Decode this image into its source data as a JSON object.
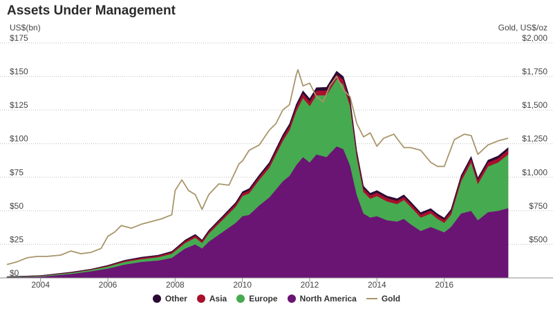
{
  "chart_data": {
    "type": "area",
    "title": "Assets Under Management",
    "ylabel_left": "US$(bn)",
    "ylabel_right": "Gold, US$/oz",
    "left_ticks": [
      "$0",
      "$25",
      "$50",
      "$75",
      "$100",
      "$125",
      "$150",
      "$175"
    ],
    "right_ticks": [
      "$500",
      "$750",
      "$1,000",
      "$1,250",
      "$1,500",
      "$1,750",
      "$2,000"
    ],
    "x_ticks": [
      "2004",
      "2006",
      "2008",
      "2010",
      "2012",
      "2014",
      "2016"
    ],
    "ylim_left": [
      0,
      175
    ],
    "ylim_right": [
      250,
      2000
    ],
    "xlim": [
      2003.0,
      2018.0
    ],
    "grid": true,
    "legend_position": "bottom",
    "x": [
      2003.0,
      2004.0,
      2004.9,
      2005.5,
      2006.0,
      2006.5,
      2007.0,
      2007.5,
      2007.9,
      2008.3,
      2008.6,
      2008.8,
      2009.0,
      2009.4,
      2009.8,
      2010.0,
      2010.2,
      2010.5,
      2010.8,
      2011.0,
      2011.2,
      2011.4,
      2011.6,
      2011.8,
      2012.0,
      2012.2,
      2012.5,
      2012.8,
      2013.0,
      2013.2,
      2013.4,
      2013.6,
      2013.8,
      2014.0,
      2014.3,
      2014.6,
      2014.8,
      2015.0,
      2015.3,
      2015.6,
      2015.8,
      2016.0,
      2016.2,
      2016.5,
      2016.8,
      2017.0,
      2017.3,
      2017.6,
      2017.9
    ],
    "series": [
      {
        "name": "North America",
        "color": "#6a1474",
        "values": [
          0.5,
          1,
          3,
          5,
          7,
          10,
          12,
          13,
          15,
          22,
          25,
          22,
          27,
          34,
          41,
          46,
          47,
          54,
          60,
          66,
          72,
          76,
          84,
          90,
          86,
          92,
          90,
          98,
          96,
          84,
          62,
          48,
          45,
          46,
          43,
          42,
          44,
          40,
          35,
          38,
          36,
          34,
          38,
          48,
          50,
          43,
          49,
          50,
          52
        ]
      },
      {
        "name": "Europe",
        "color": "#46aa50",
        "values": [
          0.3,
          0.5,
          0.8,
          1,
          1.5,
          2,
          2,
          2.5,
          3,
          4,
          5,
          4,
          6,
          9,
          12,
          15,
          16,
          19,
          22,
          26,
          30,
          34,
          40,
          44,
          42,
          44,
          46,
          50,
          48,
          44,
          28,
          16,
          14,
          15,
          14,
          13,
          14,
          13,
          10,
          10,
          8,
          7,
          9,
          24,
          36,
          27,
          34,
          36,
          40
        ]
      },
      {
        "name": "Asia",
        "color": "#a8102b",
        "values": [
          0.1,
          0.2,
          0.3,
          0.4,
          0.6,
          0.8,
          1,
          1,
          1.2,
          1.5,
          1.6,
          1.5,
          1.6,
          1.8,
          2,
          2,
          2.2,
          2.3,
          2.5,
          2.7,
          2.9,
          3,
          3.2,
          3.3,
          3.4,
          3.5,
          3.6,
          3.6,
          3.6,
          3.4,
          3,
          2.8,
          2.6,
          2.6,
          2.5,
          2.5,
          2.4,
          2.4,
          2.3,
          2.3,
          2.3,
          2.3,
          2.5,
          2.7,
          2.9,
          3,
          3,
          3.1,
          3.2
        ]
      },
      {
        "name": "Other",
        "color": "#2a0a35",
        "values": [
          0.1,
          0.1,
          0.2,
          0.2,
          0.3,
          0.4,
          0.5,
          0.5,
          0.6,
          0.8,
          0.9,
          0.8,
          0.9,
          1,
          1.2,
          1.2,
          1.3,
          1.4,
          1.5,
          1.6,
          1.7,
          1.8,
          2,
          2.1,
          2.1,
          2.2,
          2.3,
          2.4,
          2.4,
          2.2,
          1.8,
          1.6,
          1.5,
          1.5,
          1.5,
          1.5,
          1.5,
          1.4,
          1.4,
          1.4,
          1.4,
          1.4,
          1.5,
          1.6,
          1.6,
          1.6,
          1.7,
          1.7,
          1.8
        ]
      }
    ],
    "gold": {
      "name": "Gold",
      "color": "#a8956a",
      "x": [
        2003.0,
        2003.3,
        2003.6,
        2003.9,
        2004.2,
        2004.6,
        2004.9,
        2005.2,
        2005.5,
        2005.8,
        2006.0,
        2006.2,
        2006.4,
        2006.7,
        2007.0,
        2007.3,
        2007.6,
        2007.9,
        2008.0,
        2008.2,
        2008.4,
        2008.6,
        2008.8,
        2009.0,
        2009.3,
        2009.6,
        2009.9,
        2010.0,
        2010.2,
        2010.5,
        2010.8,
        2011.0,
        2011.2,
        2011.4,
        2011.6,
        2011.65,
        2011.8,
        2012.0,
        2012.2,
        2012.4,
        2012.6,
        2012.8,
        2013.0,
        2013.2,
        2013.4,
        2013.6,
        2013.8,
        2014.0,
        2014.2,
        2014.5,
        2014.8,
        2015.0,
        2015.3,
        2015.6,
        2015.8,
        2016.0,
        2016.3,
        2016.6,
        2016.8,
        2017.0,
        2017.3,
        2017.6,
        2017.9
      ],
      "values": [
        350,
        370,
        400,
        410,
        410,
        420,
        450,
        430,
        440,
        470,
        560,
        590,
        640,
        620,
        650,
        670,
        690,
        720,
        900,
        980,
        900,
        870,
        760,
        870,
        950,
        940,
        1100,
        1120,
        1200,
        1240,
        1350,
        1400,
        1500,
        1540,
        1760,
        1800,
        1680,
        1700,
        1600,
        1560,
        1680,
        1750,
        1650,
        1600,
        1400,
        1300,
        1330,
        1230,
        1290,
        1320,
        1220,
        1220,
        1200,
        1110,
        1080,
        1080,
        1280,
        1320,
        1310,
        1170,
        1240,
        1270,
        1290
      ]
    }
  }
}
